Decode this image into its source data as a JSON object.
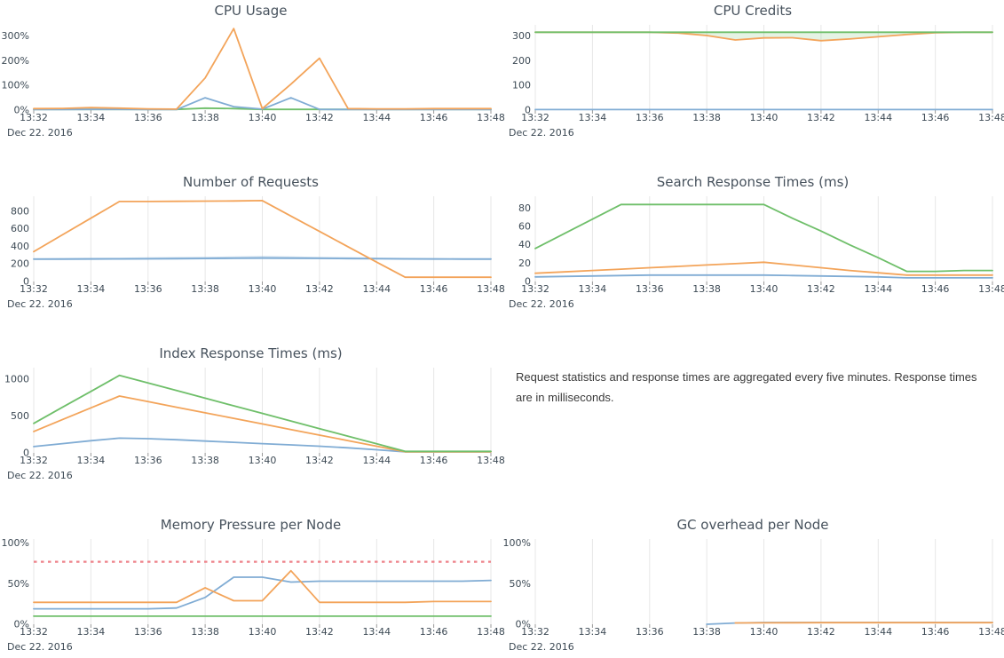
{
  "page": {
    "note_text": "Request statistics and response times are aggregated every five minutes. Response times are in milliseconds."
  },
  "colors": {
    "blue": "#80acd4",
    "orange": "#f3a45a",
    "green": "#6fbf6a",
    "threshold_red": "#ee828a",
    "grid": "#e7e7e7",
    "tick_mark": "#999999",
    "tick_text": "#3d4a55",
    "title_text": "#47525d"
  },
  "chart_data": [
    {
      "id": "cpu-usage",
      "title": "CPU Usage",
      "type": "line",
      "grid": false,
      "ymax": 345,
      "y_ticks": [
        {
          "v": 0,
          "label": "0%"
        },
        {
          "v": 100,
          "label": "100%"
        },
        {
          "v": 200,
          "label": "200%"
        },
        {
          "v": 300,
          "label": "300%"
        }
      ],
      "x_count": 17,
      "x_label_every": 2,
      "x_labels": [
        "13:32",
        "13:34",
        "13:36",
        "13:38",
        "13:40",
        "13:42",
        "13:44",
        "13:46",
        "13:48"
      ],
      "date_label": "Dec 22. 2016",
      "series": [
        {
          "color_key": "green",
          "values": [
            3,
            3,
            3,
            3,
            3,
            3,
            8,
            6,
            3,
            3,
            3,
            3,
            3,
            3,
            3,
            3,
            3
          ]
        },
        {
          "color_key": "blue",
          "values": [
            2,
            2,
            3,
            3,
            2,
            2,
            50,
            14,
            4,
            50,
            3,
            2,
            2,
            2,
            2,
            2,
            2
          ]
        },
        {
          "color_key": "orange",
          "values": [
            6,
            7,
            10,
            8,
            5,
            4,
            130,
            330,
            6,
            105,
            210,
            6,
            5,
            5,
            6,
            6,
            6
          ]
        }
      ]
    },
    {
      "id": "cpu-credits",
      "title": "CPU Credits",
      "type": "line",
      "grid": true,
      "ymax": 345,
      "y_ticks": [
        {
          "v": 0,
          "label": "0"
        },
        {
          "v": 100,
          "label": "100"
        },
        {
          "v": 200,
          "label": "200"
        },
        {
          "v": 300,
          "label": "300"
        }
      ],
      "x_count": 17,
      "x_label_every": 2,
      "x_labels": [
        "13:32",
        "13:34",
        "13:36",
        "13:38",
        "13:40",
        "13:42",
        "13:44",
        "13:46",
        "13:48"
      ],
      "date_label": "Dec 22. 2016",
      "fill_between": {
        "upper": 2,
        "lower": 1,
        "color": "rgba(111,191,106,0.18)"
      },
      "series": [
        {
          "color_key": "blue",
          "values": [
            2,
            2,
            2,
            2,
            2,
            2,
            2,
            2,
            2,
            2,
            2,
            2,
            2,
            2,
            2,
            2,
            2
          ]
        },
        {
          "color_key": "orange",
          "values": [
            315,
            315,
            315,
            315,
            315,
            312,
            302,
            284,
            292,
            293,
            281,
            288,
            297,
            306,
            313,
            315,
            315
          ]
        },
        {
          "color_key": "green",
          "values": [
            315,
            315,
            315,
            315,
            315,
            315,
            315,
            315,
            315,
            315,
            315,
            315,
            315,
            315,
            315,
            315,
            315
          ]
        }
      ]
    },
    {
      "id": "number-of-requests",
      "title": "Number of Requests",
      "type": "line",
      "grid": true,
      "ymax": 970,
      "y_ticks": [
        {
          "v": 0,
          "label": "0"
        },
        {
          "v": 200,
          "label": "200"
        },
        {
          "v": 400,
          "label": "400"
        },
        {
          "v": 600,
          "label": "600"
        },
        {
          "v": 800,
          "label": "800"
        }
      ],
      "x_count": 17,
      "x_label_every": 2,
      "x_labels": [
        "13:32",
        "13:34",
        "13:36",
        "13:38",
        "13:40",
        "13:42",
        "13:44",
        "13:46",
        "13:48"
      ],
      "date_label": "Dec 22. 2016",
      "series": [
        {
          "color_key": "blue",
          "opacity": 0.45,
          "values": [
            258,
            259,
            261,
            263,
            266,
            269,
            272,
            276,
            280,
            277,
            272,
            268,
            264,
            261,
            259,
            258,
            258
          ]
        },
        {
          "color_key": "blue",
          "values": [
            254,
            255,
            256,
            257,
            258,
            260,
            262,
            264,
            266,
            265,
            263,
            261,
            259,
            257,
            256,
            255,
            255
          ]
        },
        {
          "color_key": "orange",
          "values": [
            340,
            530,
            720,
            910,
            910,
            912,
            914,
            916,
            920,
            745,
            570,
            395,
            220,
            48,
            48,
            48,
            48
          ]
        }
      ]
    },
    {
      "id": "search-response-times",
      "title": "Search Response Times (ms)",
      "type": "line",
      "grid": true,
      "ymax": 93,
      "y_ticks": [
        {
          "v": 0,
          "label": "0"
        },
        {
          "v": 20,
          "label": "20"
        },
        {
          "v": 40,
          "label": "40"
        },
        {
          "v": 60,
          "label": "60"
        },
        {
          "v": 80,
          "label": "80"
        }
      ],
      "x_count": 17,
      "x_label_every": 2,
      "x_labels": [
        "13:32",
        "13:34",
        "13:36",
        "13:38",
        "13:40",
        "13:42",
        "13:44",
        "13:46",
        "13:48"
      ],
      "date_label": "Dec 22. 2016",
      "series": [
        {
          "color_key": "blue",
          "values": [
            5,
            5.5,
            6,
            6.5,
            7,
            7,
            7,
            7,
            7,
            6.5,
            6,
            5.5,
            5,
            4,
            4,
            4,
            4
          ]
        },
        {
          "color_key": "orange",
          "values": [
            9,
            10.5,
            12,
            13.5,
            15,
            16.5,
            18,
            19.5,
            21,
            18,
            15,
            12,
            9.5,
            7,
            7,
            7,
            7
          ]
        },
        {
          "color_key": "green",
          "values": [
            36,
            52,
            68,
            84,
            84,
            84,
            84,
            84,
            84,
            69,
            55,
            40,
            26,
            11,
            11,
            12,
            12
          ]
        }
      ]
    },
    {
      "id": "index-response-times",
      "title": "Index Response Times (ms)",
      "type": "line",
      "grid": true,
      "ymax": 1155,
      "y_ticks": [
        {
          "v": 0,
          "label": "0"
        },
        {
          "v": 500,
          "label": "500"
        },
        {
          "v": 1000,
          "label": "1000"
        }
      ],
      "x_count": 17,
      "x_label_every": 2,
      "x_labels": [
        "13:32",
        "13:34",
        "13:36",
        "13:38",
        "13:40",
        "13:42",
        "13:44",
        "13:46",
        "13:48"
      ],
      "date_label": "Dec 22. 2016",
      "series": [
        {
          "color_key": "blue",
          "values": [
            85,
            125,
            165,
            200,
            192,
            178,
            160,
            143,
            125,
            108,
            90,
            68,
            42,
            15,
            15,
            15,
            15
          ]
        },
        {
          "color_key": "orange",
          "values": [
            290,
            450,
            610,
            770,
            694,
            619,
            543,
            468,
            392,
            317,
            241,
            166,
            90,
            15,
            15,
            15,
            15
          ]
        },
        {
          "color_key": "green",
          "values": [
            400,
            617,
            833,
            1050,
            947,
            844,
            741,
            638,
            535,
            432,
            329,
            226,
            123,
            20,
            20,
            20,
            20
          ]
        }
      ]
    },
    {
      "id": "memory-pressure",
      "title": "Memory Pressure per Node",
      "type": "line",
      "grid": true,
      "ymax": 105,
      "y_ticks": [
        {
          "v": 0,
          "label": "0%"
        },
        {
          "v": 50,
          "label": "50%"
        },
        {
          "v": 100,
          "label": "100%"
        }
      ],
      "x_count": 17,
      "x_label_every": 2,
      "x_labels": [
        "13:32",
        "13:34",
        "13:36",
        "13:38",
        "13:40",
        "13:42",
        "13:44",
        "13:46",
        "13:48"
      ],
      "date_label": "Dec 22. 2016",
      "threshold": {
        "value": 77,
        "color_key": "threshold_red"
      },
      "series": [
        {
          "color_key": "green",
          "values": [
            10,
            10,
            10,
            10,
            10,
            10,
            10,
            10,
            10,
            10,
            10,
            10,
            10,
            10,
            10,
            10,
            10
          ]
        },
        {
          "color_key": "blue",
          "values": [
            19,
            19,
            19,
            19,
            19,
            20,
            33,
            58,
            58,
            52,
            53,
            53,
            53,
            53,
            53,
            53,
            54
          ]
        },
        {
          "color_key": "orange",
          "values": [
            27,
            27,
            27,
            27,
            27,
            27,
            45,
            29,
            29,
            66,
            27,
            27,
            27,
            27,
            28,
            28,
            28
          ]
        }
      ]
    },
    {
      "id": "gc-overhead",
      "title": "GC overhead per Node",
      "type": "line",
      "grid": true,
      "ymax": 105,
      "y_ticks": [
        {
          "v": 0,
          "label": "0%"
        },
        {
          "v": 50,
          "label": "50%"
        },
        {
          "v": 100,
          "label": "100%"
        }
      ],
      "x_count": 17,
      "x_label_every": 2,
      "x_labels": [
        "13:32",
        "13:34",
        "13:36",
        "13:38",
        "13:40",
        "13:42",
        "13:44",
        "13:46",
        "13:48"
      ],
      "date_label": "Dec 22. 2016",
      "series": [
        {
          "color_key": "blue",
          "values": [
            null,
            null,
            null,
            null,
            null,
            null,
            0,
            1.5,
            2.2,
            2.2,
            2.2,
            2.2,
            2.2,
            2.2,
            2.2,
            2.2,
            2.2
          ]
        },
        {
          "color_key": "orange",
          "values": [
            null,
            null,
            null,
            null,
            null,
            null,
            null,
            1.6,
            1.8,
            1.9,
            2,
            2,
            2,
            2,
            2,
            2,
            2
          ]
        }
      ]
    }
  ]
}
